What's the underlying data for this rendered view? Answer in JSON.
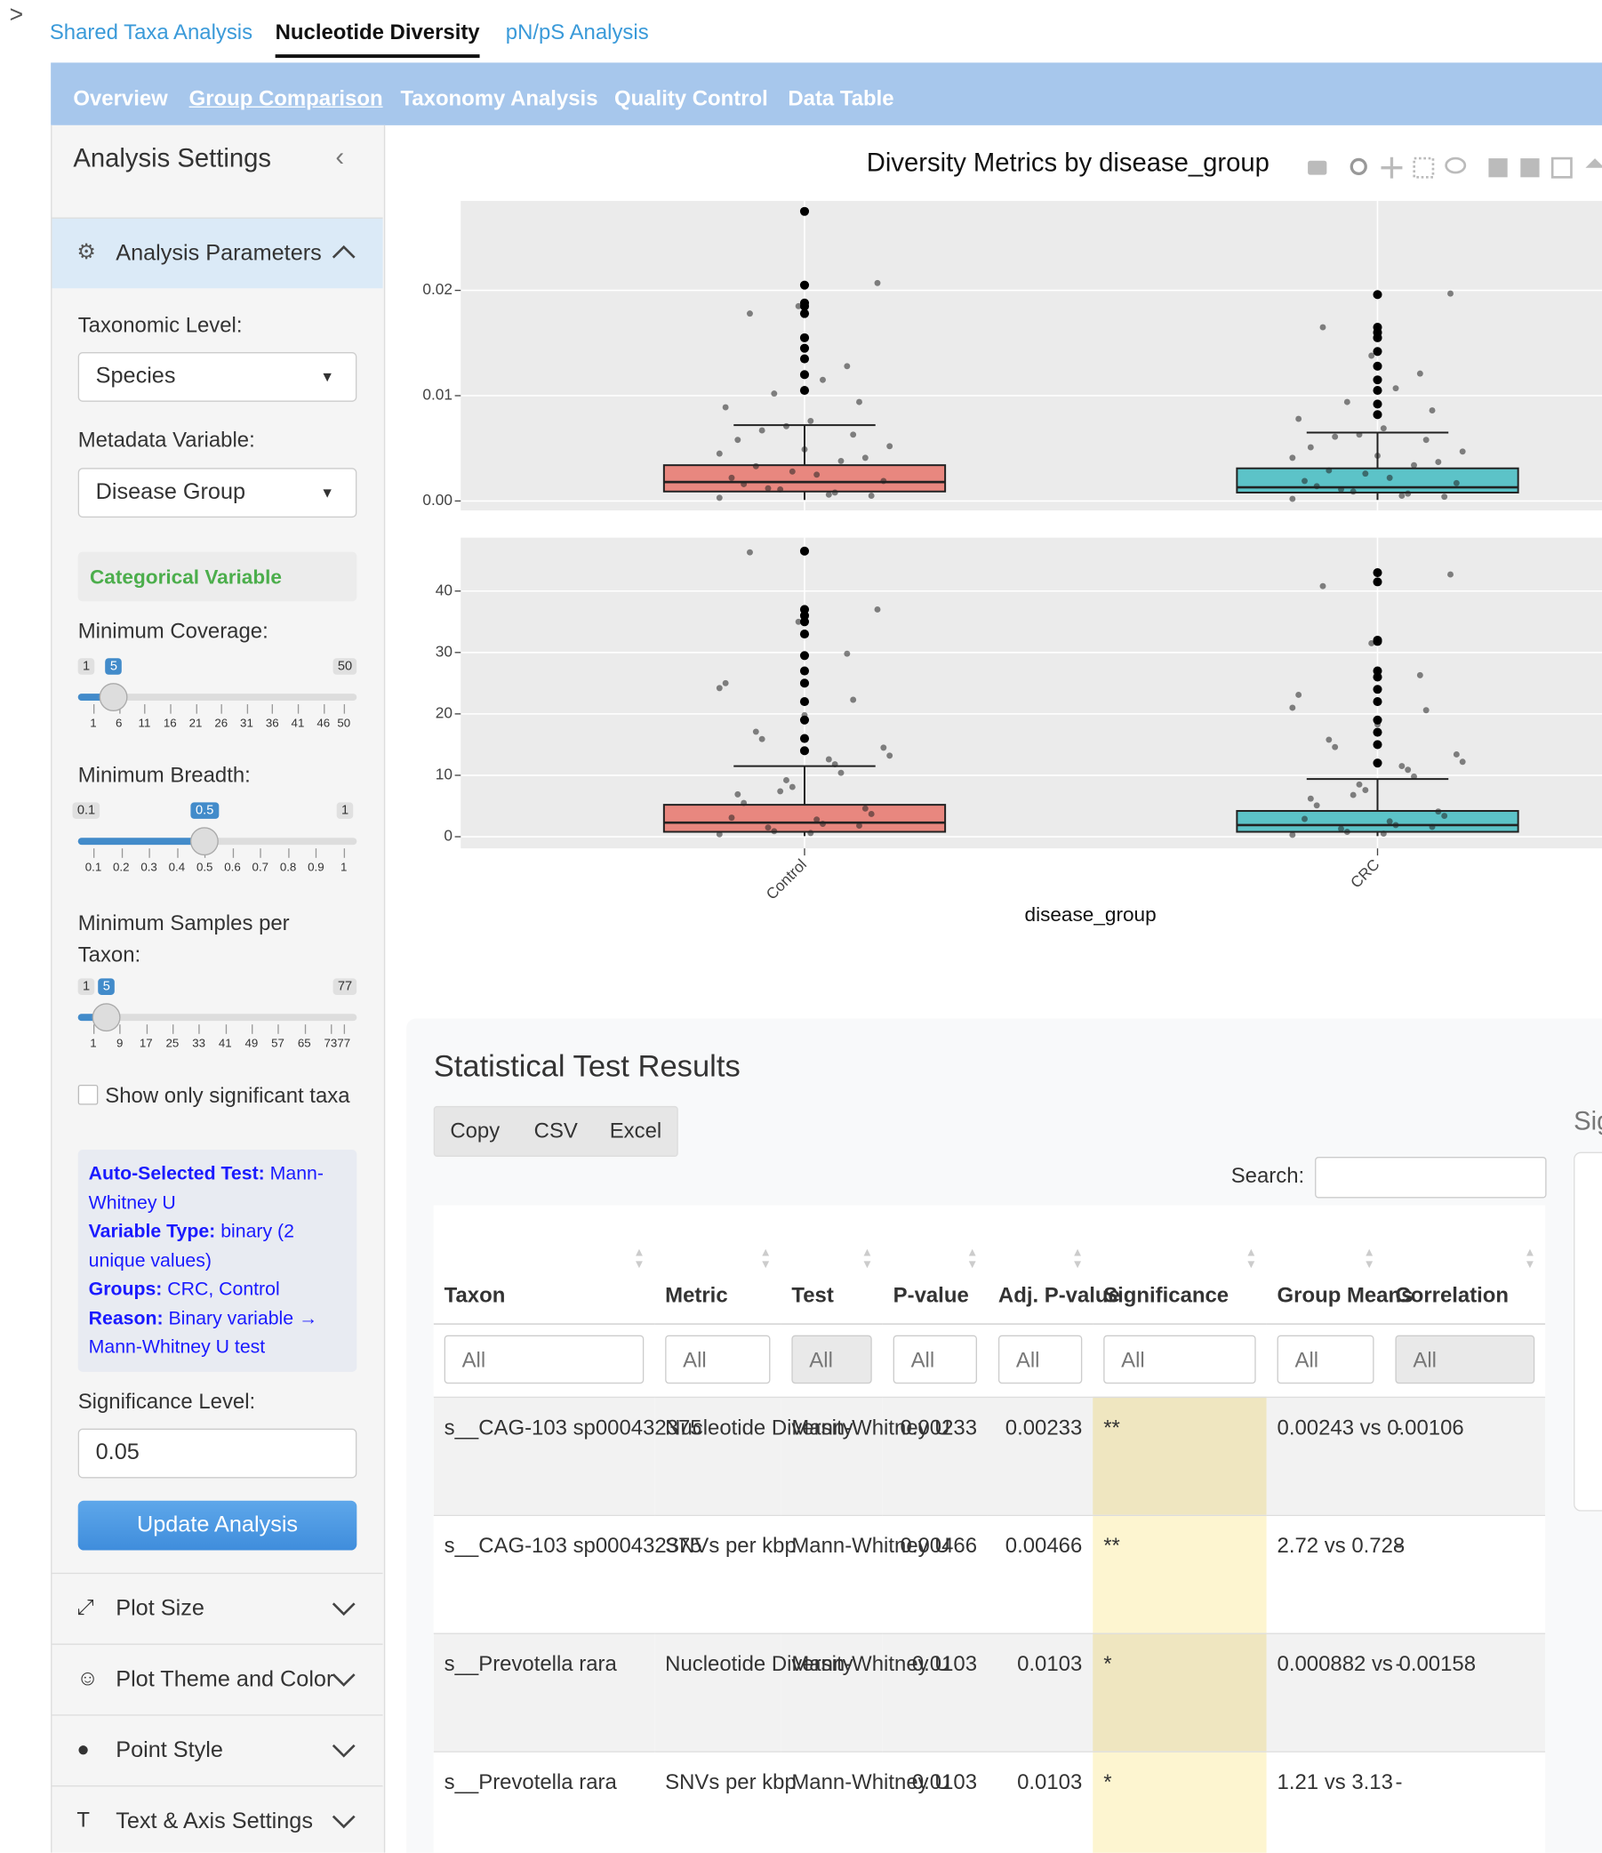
{
  "nav": {
    "tabs": [
      "Shared Taxa Analysis",
      "Nucleotide Diversity",
      "pN/pS Analysis"
    ],
    "subtabs": [
      "Overview",
      "Group Comparison",
      "Taxonomy Analysis",
      "Quality Control",
      "Data Table"
    ]
  },
  "sidebar": {
    "title": "Analysis Settings",
    "section": "Analysis Parameters",
    "taxonomic_level": {
      "label": "Taxonomic Level:",
      "value": "Species"
    },
    "metadata_variable": {
      "label": "Metadata Variable:",
      "value": "Disease Group"
    },
    "variable_kind": "Categorical Variable",
    "sliders": [
      {
        "label": "Minimum Coverage:",
        "min": 1,
        "max": 50,
        "value": 5,
        "ticks": [
          1,
          6,
          11,
          16,
          21,
          26,
          31,
          36,
          41,
          46,
          50
        ]
      },
      {
        "label": "Minimum Breadth:",
        "min": 0.1,
        "max": 1,
        "value": 0.5,
        "ticks": [
          0.1,
          0.2,
          0.3,
          0.4,
          0.5,
          0.6,
          0.7,
          0.8,
          0.9,
          1
        ]
      },
      {
        "label": "Minimum Samples per Taxon:",
        "min": 1,
        "max": 77,
        "value": 5,
        "ticks": [
          1,
          9,
          17,
          25,
          33,
          41,
          49,
          57,
          65,
          73,
          77
        ]
      }
    ],
    "checkbox": "Show only significant taxa",
    "info": [
      {
        "key": "Auto-Selected Test:",
        "text": "Mann-Whitney U"
      },
      {
        "key": "Variable Type:",
        "text": "binary (2 unique values)"
      },
      {
        "key": "Groups:",
        "text": "CRC, Control"
      },
      {
        "key": "Reason:",
        "text": "Binary variable → Mann-Whitney U test"
      }
    ],
    "significance": {
      "label": "Significance Level:",
      "value": 0.05
    },
    "button": "Update Analysis",
    "panels": [
      "Plot Size",
      "Plot Theme and Color",
      "Point Style",
      "Text & Axis Settings"
    ]
  },
  "plot": {
    "title": "Diversity Metrics by disease_group",
    "x_label": "disease_group",
    "categories": [
      "Control",
      "CRC"
    ],
    "panels": [
      {
        "type": "box",
        "ylim": [
          -0.0009,
          0.0285
        ],
        "yticks": [
          {
            "value": 0,
            "label": "0.00"
          },
          0.01,
          0.02
        ],
        "groups": [
          {
            "color": "#e8877f",
            "box": {
              "lower": 0.0001,
              "q1": 0.0009,
              "median": 0.0018,
              "q3": 0.0034,
              "upper": 0.0072
            },
            "outliers": [
              0.0275,
              0.0205,
              0.0188,
              0.0185,
              0.0178,
              0.0155,
              0.0145,
              0.0135,
              0.012,
              0.0105
            ],
            "points": [
              0.0003,
              0.0012,
              0.0025,
              0.0041,
              0.0058,
              0.0071,
              0.0008,
              0.0019,
              0.0033,
              0.0049,
              0.0063,
              0.0089,
              0.0102,
              0.0115,
              0.0005,
              0.0016,
              0.0028,
              0.0038,
              0.0052,
              0.0067,
              0.0076,
              0.0094,
              0.0022,
              0.0011,
              0.0006,
              0.0207,
              0.0178,
              0.0185,
              0.0128,
              0.0045
            ]
          },
          {
            "color": "#5cc3c8",
            "box": {
              "lower": 0.0001,
              "q1": 0.0008,
              "median": 0.0013,
              "q3": 0.0031,
              "upper": 0.0065
            },
            "outliers": [
              0.0196,
              0.0165,
              0.016,
              0.0155,
              0.0142,
              0.0128,
              0.0115,
              0.0105,
              0.0092,
              0.0082
            ],
            "points": [
              0.0002,
              0.0011,
              0.0022,
              0.0037,
              0.0051,
              0.0063,
              0.0007,
              0.0017,
              0.0029,
              0.0043,
              0.0058,
              0.0078,
              0.0094,
              0.0107,
              0.0004,
              0.0014,
              0.0026,
              0.0034,
              0.0047,
              0.0061,
              0.0069,
              0.0086,
              0.0019,
              0.0009,
              0.0005,
              0.0197,
              0.0165,
              0.0138,
              0.0121,
              0.0041
            ]
          }
        ]
      },
      {
        "type": "box",
        "ylim": [
          -1.9,
          48.7
        ],
        "yticks": [
          0,
          10,
          20,
          30,
          40
        ],
        "groups": [
          {
            "color": "#e8877f",
            "box": {
              "lower": 0.1,
              "q1": 0.8,
              "median": 2.3,
              "q3": 5.2,
              "upper": 11.5
            },
            "outliers": [
              46.5,
              37,
              36,
              35,
              33,
              29.5,
              27,
              25,
              22,
              19,
              16,
              14
            ],
            "points": [
              0.4,
              1.5,
              2.8,
              4.6,
              6.9,
              9.2,
              11.8,
              14.5,
              17.1,
              19.8,
              22.3,
              25,
              0.9,
              2.1,
              3.7,
              5.5,
              8.1,
              10.4,
              13.2,
              15.9,
              0.6,
              1.8,
              3.1,
              7.4,
              12.6,
              37,
              46.3,
              35,
              29.8,
              24.2
            ]
          },
          {
            "color": "#5cc3c8",
            "box": {
              "lower": 0.1,
              "q1": 0.8,
              "median": 1.9,
              "q3": 4.2,
              "upper": 9.4
            },
            "outliers": [
              43,
              41.5,
              32,
              31.8,
              27,
              26,
              24,
              22,
              19,
              17,
              15,
              12
            ],
            "points": [
              0.3,
              1.3,
              2.5,
              4.1,
              6.2,
              8.5,
              10.9,
              13.4,
              15.8,
              18.3,
              20.6,
              23.1,
              0.8,
              1.9,
              3.4,
              5.1,
              7.6,
              9.8,
              12.2,
              14.6,
              0.5,
              1.6,
              2.9,
              6.8,
              11.5,
              42.7,
              40.8,
              31.5,
              26.3,
              21
            ]
          }
        ]
      }
    ]
  },
  "table": {
    "title": "Statistical Test Results",
    "buttons": [
      "Copy",
      "CSV",
      "Excel"
    ],
    "search_label": "Search:",
    "side_title": "Sig",
    "columns": [
      "Taxon",
      "Metric",
      "Test",
      "P-value",
      "Adj. P-value",
      "Significance",
      "Group Means",
      "Correlation"
    ],
    "filters": [
      "All",
      "All",
      "All",
      "All",
      "All",
      "All",
      "All",
      "All"
    ],
    "rows": [
      [
        "s__CAG-103 sp000432375",
        "Nucleotide Diversity",
        "Mann-Whitney U",
        0.00233,
        0.00233,
        "**",
        "0.00243 vs 0.00106",
        "-"
      ],
      [
        "s__CAG-103 sp000432375",
        "SNVs per kbp",
        "Mann-Whitney U",
        0.00466,
        0.00466,
        "**",
        "2.72 vs 0.728",
        "-"
      ],
      [
        "s__Prevotella rara",
        "Nucleotide Diversity",
        "Mann-Whitney U",
        0.0103,
        0.0103,
        "*",
        "0.000882 vs 0.00158",
        "-"
      ],
      [
        "s__Prevotella rara",
        "SNVs per kbp",
        "Mann-Whitney U",
        0.0103,
        0.0103,
        "*",
        "1.21 vs 3.13",
        "-"
      ]
    ]
  }
}
